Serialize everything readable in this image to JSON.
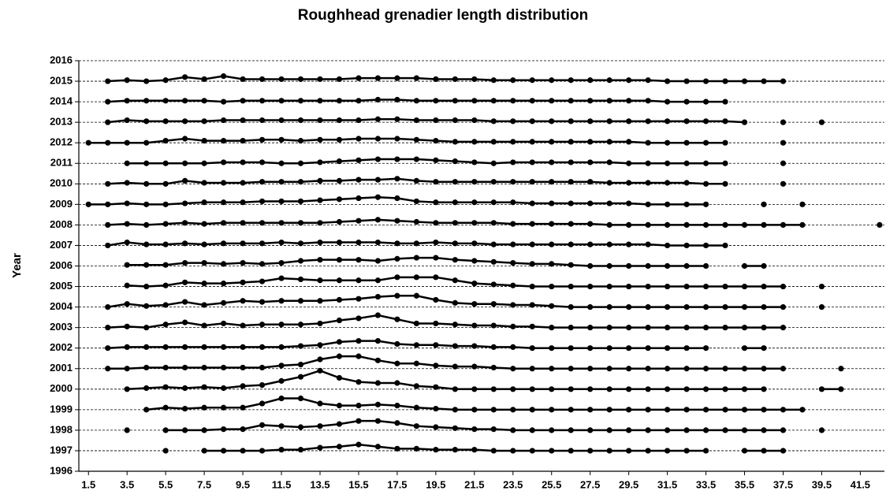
{
  "chart_data": {
    "type": "line",
    "title": "Roughhead grenadier length distribution",
    "y_label": "Year",
    "grid": true,
    "color": "#000000",
    "xlim": [
      1,
      42.75
    ],
    "ylim": [
      1996,
      2016
    ],
    "xticks": [
      1.5,
      3.5,
      5.5,
      7.5,
      9.5,
      11.5,
      13.5,
      15.5,
      17.5,
      19.5,
      21.5,
      23.5,
      25.5,
      27.5,
      29.5,
      31.5,
      33.5,
      35.5,
      37.5,
      39.5,
      41.5
    ],
    "yticks": [
      1996,
      1997,
      1998,
      1999,
      2000,
      2001,
      2002,
      2003,
      2004,
      2005,
      2006,
      2007,
      2008,
      2009,
      2010,
      2011,
      2012,
      2013,
      2014,
      2015,
      2016
    ],
    "x": [
      1.5,
      2.5,
      3.5,
      4.5,
      5.5,
      6.5,
      7.5,
      8.5,
      9.5,
      10.5,
      11.5,
      12.5,
      13.5,
      14.5,
      15.5,
      16.5,
      17.5,
      18.5,
      19.5,
      20.5,
      21.5,
      22.5,
      23.5,
      24.5,
      25.5,
      26.5,
      27.5,
      28.5,
      29.5,
      30.5,
      31.5,
      32.5,
      33.5,
      34.5,
      35.5,
      36.5,
      37.5,
      38.5,
      39.5,
      40.5,
      41.5,
      42.5
    ],
    "series": [
      {
        "values": [
          null,
          null,
          null,
          null,
          1997,
          null,
          1997,
          1997,
          1997,
          1997,
          1997.05,
          1997.05,
          1997.15,
          1997.2,
          1997.3,
          1997.2,
          1997.1,
          1997.1,
          1997.05,
          1997.05,
          1997.05,
          1997,
          1997,
          1997,
          1997,
          1997,
          1997,
          1997,
          1997,
          1997,
          1997,
          1997,
          1997,
          null,
          1997,
          1997,
          1997,
          null,
          null,
          null,
          null,
          null
        ]
      },
      {
        "values": [
          null,
          null,
          1998,
          null,
          1998,
          1998,
          1998,
          1998.05,
          1998.05,
          1998.25,
          1998.2,
          1998.15,
          1998.2,
          1998.3,
          1998.45,
          1998.45,
          1998.35,
          1998.2,
          1998.15,
          1998.1,
          1998.05,
          1998.05,
          1998,
          1998,
          1998,
          1998,
          1998,
          1998,
          1998,
          1998,
          1998,
          1998,
          1998,
          1998,
          1998,
          1998,
          1998,
          null,
          1998,
          null,
          null,
          null
        ]
      },
      {
        "values": [
          null,
          null,
          null,
          1999,
          1999.1,
          1999.05,
          1999.1,
          1999.1,
          1999.1,
          1999.3,
          1999.55,
          1999.55,
          1999.3,
          1999.2,
          1999.2,
          1999.25,
          1999.2,
          1999.1,
          1999.05,
          1999,
          1999,
          1999,
          1999,
          1999,
          1999,
          1999,
          1999,
          1999,
          1999,
          1999,
          1999,
          1999,
          1999,
          1999,
          1999,
          1999,
          1999,
          1999,
          null,
          null,
          null,
          null
        ]
      },
      {
        "values": [
          null,
          null,
          2000,
          2000.05,
          2000.1,
          2000.05,
          2000.1,
          2000.05,
          2000.15,
          2000.2,
          2000.4,
          2000.6,
          2000.9,
          2000.55,
          2000.35,
          2000.3,
          2000.3,
          2000.15,
          2000.1,
          2000,
          2000,
          2000,
          2000,
          2000,
          2000,
          2000,
          2000,
          2000,
          2000,
          2000,
          2000,
          2000,
          2000,
          2000,
          2000,
          2000,
          null,
          null,
          2000,
          2000,
          null,
          null
        ]
      },
      {
        "values": [
          null,
          2001,
          2001,
          2001.05,
          2001.05,
          2001.05,
          2001.05,
          2001.05,
          2001.05,
          2001.05,
          2001.15,
          2001.2,
          2001.45,
          2001.6,
          2001.6,
          2001.4,
          2001.25,
          2001.25,
          2001.15,
          2001.1,
          2001.1,
          2001.05,
          2001,
          2001,
          2001,
          2001,
          2001,
          2001,
          2001,
          2001,
          2001,
          2001,
          2001,
          2001,
          2001,
          2001,
          2001,
          null,
          null,
          2001,
          null,
          null
        ]
      },
      {
        "values": [
          null,
          2002,
          2002.05,
          2002.05,
          2002.05,
          2002.05,
          2002.05,
          2002.05,
          2002.05,
          2002.05,
          2002.05,
          2002.1,
          2002.15,
          2002.3,
          2002.35,
          2002.35,
          2002.2,
          2002.15,
          2002.15,
          2002.1,
          2002.1,
          2002.05,
          2002.05,
          2002,
          2002,
          2002,
          2002,
          2002,
          2002,
          2002,
          2002,
          2002,
          2002,
          null,
          2002,
          2002,
          null,
          null,
          null,
          null,
          null,
          null
        ]
      },
      {
        "values": [
          null,
          2003,
          2003.05,
          2003,
          2003.15,
          2003.25,
          2003.1,
          2003.2,
          2003.1,
          2003.15,
          2003.15,
          2003.15,
          2003.2,
          2003.35,
          2003.45,
          2003.6,
          2003.4,
          2003.2,
          2003.2,
          2003.15,
          2003.1,
          2003.1,
          2003.05,
          2003.05,
          2003,
          2003,
          2003,
          2003,
          2003,
          2003,
          2003,
          2003,
          2003,
          2003,
          2003,
          2003,
          2003,
          null,
          null,
          null,
          null,
          null
        ]
      },
      {
        "values": [
          null,
          2004,
          2004.15,
          2004.05,
          2004.1,
          2004.25,
          2004.1,
          2004.2,
          2004.3,
          2004.25,
          2004.3,
          2004.3,
          2004.3,
          2004.35,
          2004.4,
          2004.5,
          2004.55,
          2004.55,
          2004.35,
          2004.2,
          2004.15,
          2004.15,
          2004.1,
          2004.1,
          2004.05,
          2004,
          2004,
          2004,
          2004,
          2004,
          2004,
          2004,
          2004,
          2004,
          2004,
          2004,
          2004,
          null,
          2004,
          null,
          null,
          null
        ]
      },
      {
        "values": [
          null,
          null,
          2005.05,
          2005,
          2005.05,
          2005.2,
          2005.15,
          2005.15,
          2005.2,
          2005.25,
          2005.4,
          2005.35,
          2005.3,
          2005.3,
          2005.3,
          2005.3,
          2005.45,
          2005.45,
          2005.45,
          2005.3,
          2005.15,
          2005.1,
          2005.05,
          2005,
          2005,
          2005,
          2005,
          2005,
          2005,
          2005,
          2005,
          2005,
          2005,
          2005,
          2005,
          2005,
          2005,
          null,
          2005,
          null,
          null,
          null
        ]
      },
      {
        "values": [
          null,
          null,
          2006.05,
          2006.05,
          2006.05,
          2006.15,
          2006.15,
          2006.1,
          2006.15,
          2006.1,
          2006.15,
          2006.25,
          2006.3,
          2006.3,
          2006.3,
          2006.25,
          2006.35,
          2006.4,
          2006.4,
          2006.3,
          2006.25,
          2006.2,
          2006.15,
          2006.1,
          2006.1,
          2006.05,
          2006,
          2006,
          2006,
          2006,
          2006,
          2006,
          2006,
          null,
          2006,
          2006,
          null,
          null,
          null,
          null,
          null,
          null
        ]
      },
      {
        "values": [
          null,
          2007,
          2007.15,
          2007.05,
          2007.05,
          2007.1,
          2007.05,
          2007.1,
          2007.1,
          2007.1,
          2007.15,
          2007.1,
          2007.15,
          2007.15,
          2007.15,
          2007.15,
          2007.1,
          2007.1,
          2007.15,
          2007.1,
          2007.1,
          2007.05,
          2007.05,
          2007.05,
          2007.05,
          2007.05,
          2007.05,
          2007.05,
          2007.05,
          2007.05,
          2007,
          2007,
          2007,
          2007,
          null,
          null,
          null,
          null,
          null,
          null,
          null,
          null
        ]
      },
      {
        "values": [
          null,
          2008,
          2008.05,
          2008,
          2008.05,
          2008.1,
          2008.05,
          2008.1,
          2008.1,
          2008.1,
          2008.1,
          2008.1,
          2008.1,
          2008.15,
          2008.2,
          2008.25,
          2008.2,
          2008.15,
          2008.1,
          2008.1,
          2008.1,
          2008.1,
          2008.05,
          2008.05,
          2008.05,
          2008.05,
          2008.05,
          2008,
          2008,
          2008,
          2008,
          2008,
          2008,
          2008,
          2008,
          2008,
          2008,
          2008,
          null,
          null,
          null,
          2008
        ]
      },
      {
        "values": [
          2009,
          2009,
          2009.05,
          2009,
          2009,
          2009.05,
          2009.1,
          2009.1,
          2009.1,
          2009.15,
          2009.15,
          2009.15,
          2009.2,
          2009.25,
          2009.3,
          2009.35,
          2009.3,
          2009.15,
          2009.1,
          2009.1,
          2009.1,
          2009.1,
          2009.1,
          2009.05,
          2009.05,
          2009.05,
          2009.05,
          2009.05,
          2009.05,
          2009,
          2009,
          2009,
          2009,
          null,
          null,
          2009,
          null,
          2009,
          null,
          null,
          null,
          null
        ]
      },
      {
        "values": [
          null,
          2010,
          2010.05,
          2010,
          2010,
          2010.15,
          2010.05,
          2010.05,
          2010.05,
          2010.1,
          2010.1,
          2010.1,
          2010.15,
          2010.15,
          2010.2,
          2010.2,
          2010.25,
          2010.15,
          2010.1,
          2010.1,
          2010.1,
          2010.1,
          2010.1,
          2010.1,
          2010.1,
          2010.1,
          2010.1,
          2010.05,
          2010.05,
          2010.05,
          2010.05,
          2010.05,
          2010,
          2010,
          null,
          null,
          2010,
          null,
          null,
          null,
          null,
          null
        ]
      },
      {
        "values": [
          null,
          null,
          2011,
          2011,
          2011,
          2011,
          2011,
          2011.05,
          2011.05,
          2011.05,
          2011,
          2011,
          2011.05,
          2011.1,
          2011.15,
          2011.2,
          2011.2,
          2011.2,
          2011.15,
          2011.1,
          2011.05,
          2011,
          2011.05,
          2011.05,
          2011.05,
          2011.05,
          2011.05,
          2011.05,
          2011,
          2011,
          2011,
          2011,
          2011,
          2011,
          null,
          null,
          2011,
          null,
          null,
          null,
          null,
          null
        ]
      },
      {
        "values": [
          2012,
          2012,
          2012,
          2012,
          2012.1,
          2012.2,
          2012.1,
          2012.1,
          2012.1,
          2012.15,
          2012.15,
          2012.1,
          2012.15,
          2012.15,
          2012.2,
          2012.2,
          2012.2,
          2012.15,
          2012.1,
          2012.05,
          2012.05,
          2012.05,
          2012.05,
          2012.05,
          2012.05,
          2012.05,
          2012.05,
          2012.05,
          2012.05,
          2012,
          2012,
          2012,
          2012,
          2012,
          null,
          null,
          2012,
          null,
          null,
          null,
          null,
          null
        ]
      },
      {
        "values": [
          null,
          2013,
          2013.1,
          2013.05,
          2013.05,
          2013.05,
          2013.05,
          2013.1,
          2013.1,
          2013.1,
          2013.1,
          2013.1,
          2013.1,
          2013.1,
          2013.1,
          2013.15,
          2013.15,
          2013.1,
          2013.1,
          2013.1,
          2013.1,
          2013.05,
          2013.05,
          2013.05,
          2013.05,
          2013.05,
          2013.05,
          2013.05,
          2013.05,
          2013.05,
          2013.05,
          2013.05,
          2013.05,
          2013.05,
          2013,
          null,
          2013,
          null,
          2013,
          null,
          null,
          null
        ]
      },
      {
        "values": [
          null,
          2014,
          2014.05,
          2014.05,
          2014.05,
          2014.05,
          2014.05,
          2014,
          2014.05,
          2014.05,
          2014.05,
          2014.05,
          2014.05,
          2014.05,
          2014.05,
          2014.1,
          2014.1,
          2014.05,
          2014.05,
          2014.05,
          2014.05,
          2014.05,
          2014.05,
          2014.05,
          2014.05,
          2014.05,
          2014.05,
          2014.05,
          2014.05,
          2014.05,
          2014,
          2014,
          2014,
          2014,
          null,
          null,
          null,
          null,
          null,
          null,
          null,
          null
        ]
      },
      {
        "values": [
          null,
          2015,
          2015.05,
          2015,
          2015.05,
          2015.2,
          2015.1,
          2015.25,
          2015.1,
          2015.1,
          2015.1,
          2015.1,
          2015.1,
          2015.1,
          2015.15,
          2015.15,
          2015.15,
          2015.15,
          2015.1,
          2015.1,
          2015.1,
          2015.05,
          2015.05,
          2015.05,
          2015.05,
          2015.05,
          2015.05,
          2015.05,
          2015.05,
          2015.05,
          2015,
          2015,
          2015,
          2015,
          2015,
          2015,
          2015,
          null,
          null,
          null,
          null,
          null
        ]
      }
    ]
  }
}
